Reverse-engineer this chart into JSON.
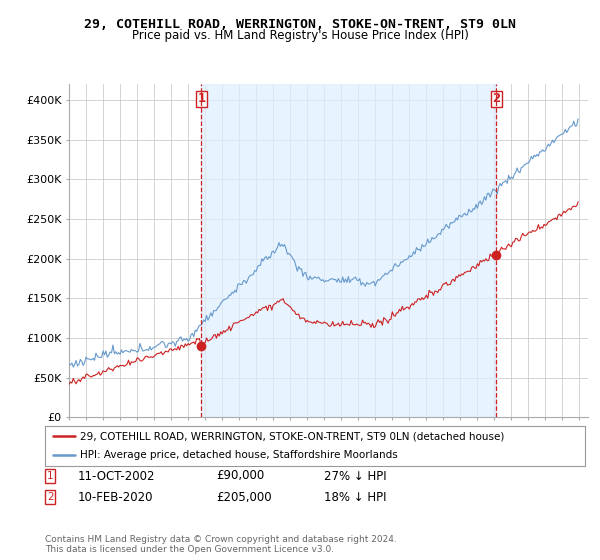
{
  "title": "29, COTEHILL ROAD, WERRINGTON, STOKE-ON-TRENT, ST9 0LN",
  "subtitle": "Price paid vs. HM Land Registry's House Price Index (HPI)",
  "legend_entries": [
    "29, COTEHILL ROAD, WERRINGTON, STOKE-ON-TRENT, ST9 0LN (detached house)",
    "HPI: Average price, detached house, Staffordshire Moorlands"
  ],
  "sale1_date": "11-OCT-2002",
  "sale1_price": "£90,000",
  "sale1_hpi": "27% ↓ HPI",
  "sale2_date": "10-FEB-2020",
  "sale2_price": "£205,000",
  "sale2_hpi": "18% ↓ HPI",
  "footer": "Contains HM Land Registry data © Crown copyright and database right 2024.\nThis data is licensed under the Open Government Licence v3.0.",
  "hpi_color": "#6699cc",
  "price_color": "#cc2222",
  "vline_color": "#cc2222",
  "background_color": "#ffffff",
  "grid_color": "#cccccc",
  "shade_color": "#ddeeff",
  "ylim": [
    0,
    420000
  ],
  "yticks": [
    0,
    50000,
    100000,
    150000,
    200000,
    250000,
    300000,
    350000,
    400000
  ],
  "ytick_labels": [
    "£0",
    "£50K",
    "£100K",
    "£150K",
    "£200K",
    "£250K",
    "£300K",
    "£350K",
    "£400K"
  ],
  "xlim_start": 1995.0,
  "xlim_end": 2025.5,
  "sale1_x": 2002.78,
  "sale2_x": 2020.1,
  "sale1_y": 90000,
  "sale2_y": 205000
}
